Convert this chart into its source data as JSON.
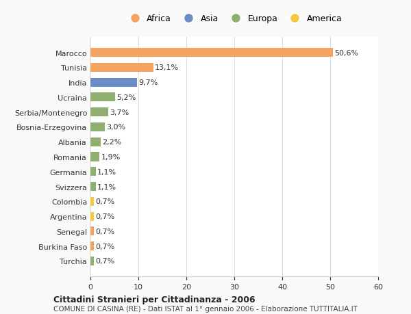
{
  "countries": [
    "Marocco",
    "Tunisia",
    "India",
    "Ucraina",
    "Serbia/Montenegro",
    "Bosnia-Erzegovina",
    "Albania",
    "Romania",
    "Germania",
    "Svizzera",
    "Colombia",
    "Argentina",
    "Senegal",
    "Burkina Faso",
    "Turchia"
  ],
  "values": [
    50.6,
    13.1,
    9.7,
    5.2,
    3.7,
    3.0,
    2.2,
    1.9,
    1.1,
    1.1,
    0.7,
    0.7,
    0.7,
    0.7,
    0.7
  ],
  "labels": [
    "50,6%",
    "13,1%",
    "9,7%",
    "5,2%",
    "3,7%",
    "3,0%",
    "2,2%",
    "1,9%",
    "1,1%",
    "1,1%",
    "0,7%",
    "0,7%",
    "0,7%",
    "0,7%",
    "0,7%"
  ],
  "colors": [
    "#F4A460",
    "#F4A460",
    "#6B8EC7",
    "#8FAF70",
    "#8FAF70",
    "#8FAF70",
    "#8FAF70",
    "#8FAF70",
    "#8FAF70",
    "#8FAF70",
    "#F5C842",
    "#F5C842",
    "#F4A460",
    "#F4A460",
    "#8FAF70"
  ],
  "legend": [
    {
      "label": "Africa",
      "color": "#F4A460"
    },
    {
      "label": "Asia",
      "color": "#6B8EC7"
    },
    {
      "label": "Europa",
      "color": "#8FAF70"
    },
    {
      "label": "America",
      "color": "#F5C842"
    }
  ],
  "xlim": [
    0,
    60
  ],
  "xticks": [
    0,
    10,
    20,
    30,
    40,
    50,
    60
  ],
  "title": "Cittadini Stranieri per Cittadinanza - 2006",
  "subtitle": "COMUNE DI CASINA (RE) - Dati ISTAT al 1° gennaio 2006 - Elaborazione TUTTITALIA.IT",
  "background_color": "#f9f9f9",
  "bar_background": "#ffffff"
}
